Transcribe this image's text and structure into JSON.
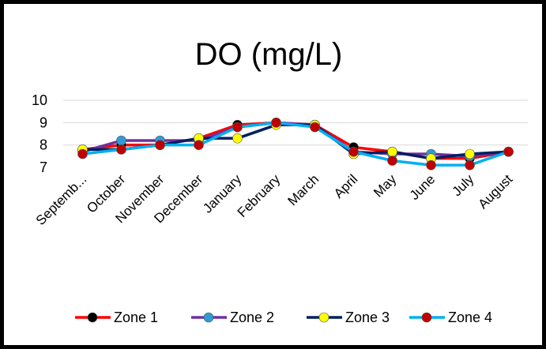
{
  "chart_data": {
    "type": "line",
    "title": "DO (mg/L)",
    "xlabel": "",
    "ylabel": "",
    "categories": [
      "Septemb...",
      "October",
      "November",
      "December",
      "January",
      "February",
      "March",
      "April",
      "May",
      "June",
      "July",
      "August"
    ],
    "y_ticks": [
      "10",
      "9",
      "8",
      "7"
    ],
    "ylim": [
      7,
      10
    ],
    "grid": true,
    "legend_position": "bottom",
    "series": [
      {
        "name": "Zone 1",
        "line_color": "#ff0000",
        "marker_color": "#000000",
        "values": [
          7.8,
          8.0,
          8.0,
          8.3,
          8.9,
          9.0,
          8.9,
          7.9,
          7.7,
          7.4,
          7.4,
          7.7
        ]
      },
      {
        "name": "Zone 2",
        "line_color": "#7030a0",
        "marker_color": "#2e9bd6",
        "values": [
          7.7,
          8.2,
          8.2,
          8.2,
          8.8,
          9.0,
          8.9,
          7.7,
          7.6,
          7.6,
          7.5,
          7.7
        ]
      },
      {
        "name": "Zone 3",
        "line_color": "#002060",
        "marker_color": "#ffff00",
        "values": [
          7.8,
          7.8,
          8.0,
          8.3,
          8.3,
          8.9,
          8.9,
          7.6,
          7.7,
          7.4,
          7.6,
          7.7
        ]
      },
      {
        "name": "Zone 4",
        "line_color": "#00b0f0",
        "marker_color": "#c00000",
        "values": [
          7.6,
          7.8,
          8.0,
          8.0,
          8.8,
          9.0,
          8.8,
          7.7,
          7.3,
          7.1,
          7.1,
          7.7
        ]
      }
    ]
  }
}
